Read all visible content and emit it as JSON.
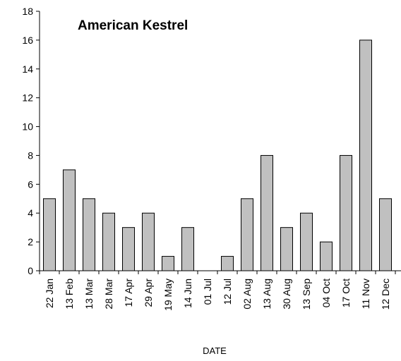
{
  "chart_data": {
    "type": "bar",
    "title": "American Kestrel",
    "xlabel": "DATE",
    "ylabel": "",
    "ylim": [
      0,
      18
    ],
    "yticks": [
      0,
      2,
      4,
      6,
      8,
      10,
      12,
      14,
      16,
      18
    ],
    "grid": false,
    "categories": [
      "22 Jan",
      "13 Feb",
      "13 Mar",
      "28 Mar",
      "17 Apr",
      "29 Apr",
      "19 May",
      "14 Jun",
      "01 Jul",
      "12 Jul",
      "02 Aug",
      "13 Aug",
      "30 Aug",
      "13 Sep",
      "04 Oct",
      "17 Oct",
      "11 Nov",
      "12 Dec"
    ],
    "values": [
      5,
      7,
      5,
      4,
      3,
      4,
      1,
      3,
      0,
      1,
      5,
      8,
      3,
      4,
      2,
      8,
      16,
      5
    ],
    "bar_color": "#c0c0c0"
  }
}
